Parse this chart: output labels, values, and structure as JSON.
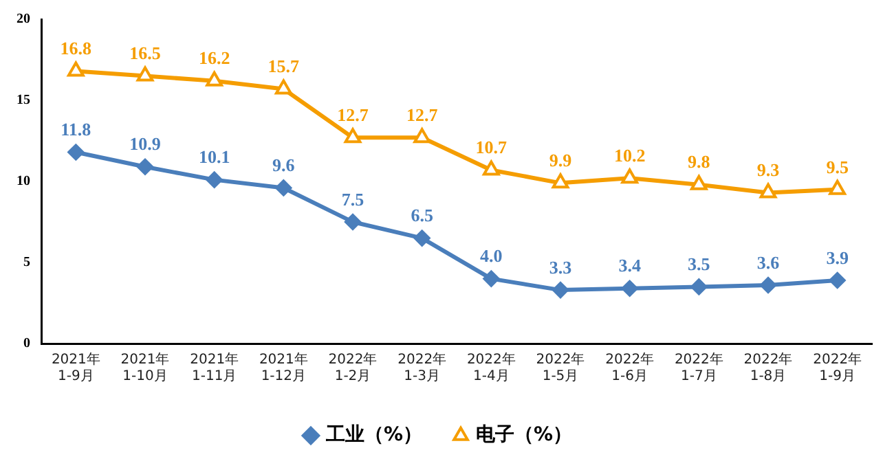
{
  "chart_data": {
    "type": "line",
    "categories": [
      "2021年\n1-9月",
      "2021年\n1-10月",
      "2021年\n1-11月",
      "2021年\n1-12月",
      "2022年\n1-2月",
      "2022年\n1-3月",
      "2022年\n1-4月",
      "2022年\n1-5月",
      "2022年\n1-6月",
      "2022年\n1-7月",
      "2022年\n1-8月",
      "2022年\n1-9月"
    ],
    "series": [
      {
        "name": "工业（%）",
        "color": "#4a7ebb",
        "marker": "diamond",
        "values": [
          11.8,
          10.9,
          10.1,
          9.6,
          7.5,
          6.5,
          4.0,
          3.3,
          3.4,
          3.5,
          3.6,
          3.9
        ],
        "value_labels": [
          "11.8",
          "10.9",
          "10.1",
          "9.6",
          "7.5",
          "6.5",
          "4.0",
          "3.3",
          "3.4",
          "3.5",
          "3.6",
          "3.9"
        ]
      },
      {
        "name": "电子（%）",
        "color": "#f59d00",
        "marker": "triangle",
        "values": [
          16.8,
          16.5,
          16.2,
          15.7,
          12.7,
          12.7,
          10.7,
          9.9,
          10.2,
          9.8,
          9.3,
          9.5
        ],
        "value_labels": [
          "16.8",
          "16.5",
          "16.2",
          "15.7",
          "12.7",
          "12.7",
          "10.7",
          "9.9",
          "10.2",
          "9.8",
          "9.3",
          "9.5"
        ]
      }
    ],
    "ylim": [
      0,
      20
    ],
    "yticks": [
      0,
      5,
      10,
      15,
      20
    ],
    "legend": "bottom",
    "line_style": "solid"
  }
}
